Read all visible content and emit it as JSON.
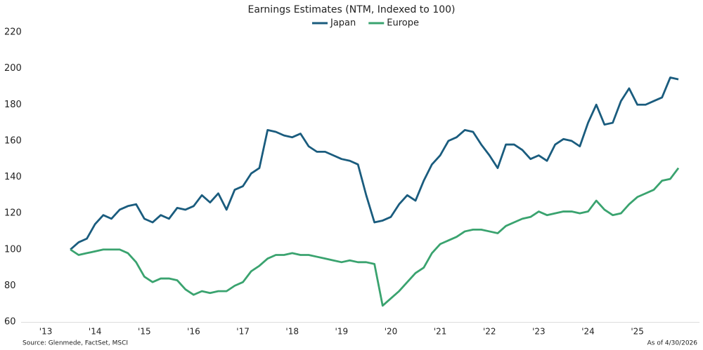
{
  "chart_data": {
    "type": "line",
    "title": "Earnings Estimates (NTM, Indexed to 100)",
    "source": "Source: Glenmede, FactSet, MSCI",
    "as_of": "As of 4/30/2026",
    "x": [
      2014,
      2014.167,
      2014.333,
      2014.5,
      2014.667,
      2014.833,
      2015,
      2015.167,
      2015.333,
      2015.5,
      2015.667,
      2015.833,
      2016,
      2016.167,
      2016.333,
      2016.5,
      2016.667,
      2016.833,
      2017,
      2017.167,
      2017.333,
      2017.5,
      2017.667,
      2017.833,
      2018,
      2018.167,
      2018.333,
      2018.5,
      2018.667,
      2018.833,
      2019,
      2019.167,
      2019.333,
      2019.5,
      2019.667,
      2019.833,
      2020,
      2020.167,
      2020.333,
      2020.5,
      2020.667,
      2020.833,
      2021,
      2021.167,
      2021.333,
      2021.5,
      2021.667,
      2021.833,
      2022,
      2022.167,
      2022.333,
      2022.5,
      2022.667,
      2022.833,
      2023,
      2023.167,
      2023.333,
      2023.5,
      2023.667,
      2023.833,
      2024,
      2024.167,
      2024.333,
      2024.5,
      2024.667,
      2024.833,
      2025,
      2025.167,
      2025.333,
      2025.5,
      2025.667,
      2025.833,
      2026,
      2026.167,
      2026.333
    ],
    "series": [
      {
        "name": "Japan",
        "color": "#1a5c7e",
        "values": [
          100,
          104,
          106,
          114,
          119,
          117,
          122,
          124,
          125,
          117,
          115,
          119,
          117,
          123,
          122,
          124,
          130,
          126,
          131,
          122,
          133,
          135,
          142,
          145,
          166,
          165,
          163,
          162,
          164,
          157,
          154,
          154,
          152,
          150,
          149,
          147,
          130,
          115,
          116,
          118,
          125,
          130,
          127,
          138,
          147,
          152,
          160,
          162,
          166,
          165,
          158,
          152,
          145,
          158,
          158,
          155,
          150,
          152,
          149,
          158,
          161,
          160,
          157,
          170,
          180,
          169,
          170,
          182,
          189,
          180,
          180,
          182,
          184,
          195,
          194
        ]
      },
      {
        "name": "Europe",
        "color": "#3aa36f",
        "values": [
          100,
          97,
          98,
          99,
          100,
          100,
          100,
          98,
          93,
          85,
          82,
          84,
          84,
          83,
          78,
          75,
          77,
          76,
          77,
          77,
          80,
          82,
          88,
          91,
          95,
          97,
          97,
          98,
          97,
          97,
          96,
          95,
          94,
          93,
          94,
          93,
          93,
          92,
          69,
          73,
          77,
          82,
          87,
          90,
          98,
          103,
          105,
          107,
          110,
          111,
          111,
          110,
          109,
          113,
          115,
          117,
          118,
          121,
          119,
          120,
          121,
          121,
          120,
          121,
          127,
          122,
          119,
          120,
          125,
          129,
          131,
          133,
          138,
          139,
          145
        ]
      }
    ],
    "xlim": [
      2013,
      2026.76
    ],
    "xticks": [
      {
        "value": 2013.5,
        "label": "'13"
      },
      {
        "value": 2014.5,
        "label": "'14"
      },
      {
        "value": 2015.5,
        "label": "'15"
      },
      {
        "value": 2016.5,
        "label": "'16"
      },
      {
        "value": 2017.5,
        "label": "'17"
      },
      {
        "value": 2018.5,
        "label": "'18"
      },
      {
        "value": 2019.5,
        "label": "'19"
      },
      {
        "value": 2020.5,
        "label": "'20"
      },
      {
        "value": 2021.5,
        "label": "'21"
      },
      {
        "value": 2022.5,
        "label": "'22"
      },
      {
        "value": 2023.5,
        "label": "'23"
      },
      {
        "value": 2024.5,
        "label": "'24"
      },
      {
        "value": 2025.5,
        "label": "'25"
      }
    ],
    "ylim": [
      60,
      220
    ],
    "yticks": [
      60,
      80,
      100,
      120,
      140,
      160,
      180,
      200,
      220
    ],
    "grid": false,
    "legend": "top"
  }
}
